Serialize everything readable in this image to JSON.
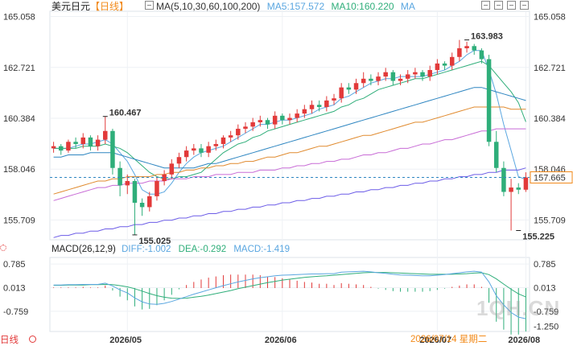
{
  "header": {
    "symbol": "美元日元",
    "period": "【日线】",
    "ma_label": "MA(5,10,30,60,100,200)",
    "ma5_text": "MA5:157.572",
    "ma10_text": "MA10:160.220",
    "ma_short": "MA"
  },
  "macd_header": {
    "label": "MACD(26,12,9)",
    "diff_text": "DIFF:-1.002",
    "dea_text": "DEA:-0.292",
    "macd_text": "MACD:-1.419"
  },
  "footer": {
    "period_label": "日线",
    "watermark": "1QH.CN"
  },
  "crosshair": {
    "date_text": "2026/07/14 星期二"
  },
  "colors": {
    "up": "#e23a3a",
    "down": "#2fae7a",
    "ma5": "#5aa6e0",
    "ma10": "#2fae7a",
    "ma30": "#2e86c1",
    "ma60": "#e08a2e",
    "ma100": "#c86bd6",
    "ma200": "#6c5ce7",
    "accent": "#e84545"
  },
  "chart_data": [
    {
      "type": "candlestick",
      "ylim": [
        154.8,
        165.3
      ],
      "y_ticks": [
        "165.058",
        "162.721",
        "160.384",
        "158.046",
        "155.709"
      ],
      "x_ticks": [
        "2026/05",
        "2026/06",
        "2026/07",
        "2026/08"
      ],
      "current_price": "157.665",
      "annotations": [
        {
          "text": "160.467",
          "value": 160.467,
          "index": 7
        },
        {
          "text": "155.025",
          "value": 155.025,
          "index": 11
        },
        {
          "text": "163.983",
          "value": 163.983,
          "index": 56
        },
        {
          "text": "155.225",
          "value": 155.225,
          "index": 63
        }
      ],
      "series": {
        "open": [
          159.0,
          159.1,
          158.9,
          159.3,
          159.2,
          159.5,
          159.1,
          159.4,
          159.8,
          158.1,
          157.3,
          157.5,
          156.5,
          156.3,
          156.8,
          157.5,
          157.8,
          158.3,
          158.6,
          158.9,
          159.0,
          158.8,
          159.1,
          159.2,
          159.5,
          159.6,
          159.9,
          160.0,
          160.2,
          160.3,
          160.1,
          160.5,
          160.3,
          160.4,
          160.6,
          160.8,
          161.0,
          160.9,
          161.2,
          161.3,
          161.8,
          161.7,
          162.0,
          162.2,
          162.1,
          162.3,
          162.5,
          162.1,
          162.2,
          162.4,
          162.5,
          162.3,
          162.6,
          162.9,
          162.8,
          163.2,
          163.6,
          163.7,
          163.5,
          163.1,
          159.3,
          158.1,
          157.0,
          157.2,
          157.1
        ],
        "close": [
          159.1,
          158.9,
          159.3,
          159.2,
          159.5,
          159.1,
          159.4,
          159.8,
          158.1,
          157.3,
          157.5,
          156.5,
          156.3,
          156.8,
          157.5,
          157.8,
          158.3,
          158.6,
          158.9,
          159.0,
          158.8,
          159.1,
          159.2,
          159.5,
          159.6,
          159.9,
          160.0,
          160.2,
          160.3,
          160.1,
          160.5,
          160.3,
          160.4,
          160.6,
          160.8,
          161.0,
          160.9,
          161.2,
          161.3,
          161.8,
          161.7,
          162.0,
          162.2,
          162.1,
          162.3,
          162.5,
          162.1,
          162.2,
          162.4,
          162.5,
          162.3,
          162.6,
          162.9,
          162.8,
          163.2,
          163.6,
          163.7,
          163.5,
          163.1,
          159.3,
          158.1,
          157.0,
          157.2,
          157.1,
          157.665
        ],
        "high": [
          159.3,
          159.2,
          159.4,
          159.5,
          159.7,
          159.6,
          159.6,
          160.467,
          159.9,
          158.4,
          157.8,
          157.6,
          156.7,
          157.0,
          157.7,
          158.0,
          158.5,
          158.8,
          159.1,
          159.2,
          159.2,
          159.3,
          159.4,
          159.6,
          159.8,
          160.1,
          160.2,
          160.4,
          160.5,
          160.4,
          160.7,
          160.6,
          160.6,
          160.8,
          161.0,
          161.2,
          161.2,
          161.4,
          161.5,
          162.0,
          162.0,
          162.2,
          162.5,
          162.4,
          162.5,
          162.7,
          162.6,
          162.4,
          162.6,
          162.7,
          162.6,
          162.8,
          163.1,
          163.0,
          163.4,
          163.983,
          163.9,
          163.8,
          163.6,
          163.3,
          159.8,
          158.4,
          157.6,
          157.4,
          157.9
        ],
        "low": [
          158.8,
          158.7,
          158.8,
          159.0,
          159.0,
          158.9,
          158.9,
          159.2,
          157.8,
          156.8,
          156.9,
          155.025,
          155.9,
          156.1,
          156.6,
          157.3,
          157.6,
          158.1,
          158.4,
          158.7,
          158.6,
          158.6,
          158.9,
          159.0,
          159.3,
          159.4,
          159.7,
          159.8,
          160.0,
          159.9,
          159.9,
          160.1,
          160.1,
          160.2,
          160.4,
          160.6,
          160.7,
          160.7,
          161.0,
          161.1,
          161.5,
          161.5,
          161.8,
          161.9,
          161.9,
          162.1,
          161.9,
          161.9,
          162.0,
          162.2,
          162.1,
          162.1,
          162.4,
          162.6,
          162.6,
          163.0,
          163.4,
          163.3,
          162.9,
          159.1,
          157.9,
          156.8,
          155.225,
          156.9,
          157.0
        ]
      },
      "moving_averages": [
        {
          "name": "MA5",
          "values": [
            159.0,
            159.0,
            159.0,
            159.1,
            159.2,
            159.2,
            159.3,
            159.4,
            159.2,
            158.8,
            158.4,
            157.8,
            157.1,
            156.9,
            156.9,
            157.0,
            157.4,
            157.9,
            158.3,
            158.6,
            158.8,
            158.9,
            159.0,
            159.1,
            159.3,
            159.5,
            159.7,
            159.9,
            160.1,
            160.1,
            160.2,
            160.3,
            160.3,
            160.4,
            160.5,
            160.6,
            160.8,
            160.9,
            161.0,
            161.3,
            161.4,
            161.6,
            161.8,
            162.0,
            162.1,
            162.2,
            162.2,
            162.3,
            162.3,
            162.3,
            162.3,
            162.4,
            162.5,
            162.6,
            162.8,
            163.0,
            163.3,
            163.5,
            163.5,
            162.6,
            161.5,
            160.1,
            158.9,
            157.7,
            157.572
          ]
        },
        {
          "name": "MA10",
          "values": [
            159.0,
            159.0,
            159.0,
            159.0,
            159.1,
            159.1,
            159.1,
            159.2,
            159.1,
            159.0,
            158.8,
            158.5,
            158.2,
            157.9,
            157.7,
            157.6,
            157.6,
            157.7,
            157.7,
            157.8,
            157.9,
            158.2,
            158.5,
            158.8,
            159.0,
            159.2,
            159.3,
            159.5,
            159.6,
            159.8,
            159.9,
            160.0,
            160.1,
            160.2,
            160.3,
            160.4,
            160.5,
            160.6,
            160.7,
            160.9,
            161.0,
            161.2,
            161.3,
            161.5,
            161.7,
            161.8,
            161.9,
            162.0,
            162.1,
            162.2,
            162.2,
            162.3,
            162.4,
            162.5,
            162.6,
            162.7,
            162.8,
            162.9,
            163.0,
            162.8,
            162.4,
            162.0,
            161.6,
            161.1,
            160.22
          ]
        },
        {
          "name": "MA30",
          "values": [
            158.6,
            158.6,
            158.7,
            158.7,
            158.7,
            158.8,
            158.8,
            158.8,
            158.8,
            158.7,
            158.6,
            158.5,
            158.4,
            158.3,
            158.2,
            158.1,
            158.1,
            158.1,
            158.1,
            158.1,
            158.2,
            158.3,
            158.3,
            158.4,
            158.5,
            158.6,
            158.7,
            158.8,
            158.9,
            159.0,
            159.1,
            159.2,
            159.3,
            159.4,
            159.5,
            159.6,
            159.7,
            159.8,
            159.9,
            160.0,
            160.1,
            160.2,
            160.3,
            160.4,
            160.5,
            160.6,
            160.7,
            160.8,
            160.9,
            161.0,
            161.1,
            161.2,
            161.3,
            161.4,
            161.5,
            161.6,
            161.7,
            161.8,
            161.8,
            161.7,
            161.6,
            161.5,
            161.4,
            161.3,
            161.2
          ]
        },
        {
          "name": "MA60",
          "values": [
            156.9,
            157.0,
            157.1,
            157.2,
            157.3,
            157.4,
            157.5,
            157.5,
            157.6,
            157.6,
            157.7,
            157.7,
            157.7,
            157.7,
            157.8,
            157.8,
            157.9,
            157.9,
            158.0,
            158.0,
            158.1,
            158.1,
            158.2,
            158.2,
            158.3,
            158.3,
            158.4,
            158.4,
            158.5,
            158.6,
            158.6,
            158.7,
            158.8,
            158.8,
            158.9,
            159.0,
            159.1,
            159.1,
            159.2,
            159.3,
            159.4,
            159.5,
            159.6,
            159.6,
            159.7,
            159.8,
            159.9,
            160.0,
            160.1,
            160.2,
            160.2,
            160.3,
            160.4,
            160.5,
            160.6,
            160.7,
            160.8,
            160.9,
            160.9,
            160.9,
            160.9,
            160.9,
            160.8,
            160.8,
            160.8
          ]
        },
        {
          "name": "MA100",
          "values": [
            156.6,
            156.7,
            156.8,
            156.9,
            157.0,
            157.1,
            157.2,
            157.2,
            157.3,
            157.3,
            157.4,
            157.4,
            157.4,
            157.5,
            157.5,
            157.5,
            157.6,
            157.6,
            157.6,
            157.7,
            157.7,
            157.7,
            157.8,
            157.8,
            157.8,
            157.9,
            157.9,
            157.9,
            158.0,
            158.0,
            158.0,
            158.1,
            158.1,
            158.2,
            158.2,
            158.3,
            158.3,
            158.4,
            158.4,
            158.5,
            158.5,
            158.6,
            158.7,
            158.7,
            158.8,
            158.8,
            158.9,
            159.0,
            159.0,
            159.1,
            159.2,
            159.2,
            159.3,
            159.4,
            159.4,
            159.5,
            159.6,
            159.7,
            159.8,
            159.8,
            159.9,
            159.9,
            159.9,
            159.9,
            159.9
          ]
        },
        {
          "name": "MA200",
          "values": [
            154.9,
            155.0,
            155.0,
            155.1,
            155.1,
            155.2,
            155.2,
            155.3,
            155.3,
            155.4,
            155.4,
            155.5,
            155.5,
            155.6,
            155.6,
            155.7,
            155.7,
            155.8,
            155.8,
            155.9,
            155.9,
            156.0,
            156.0,
            156.1,
            156.1,
            156.2,
            156.2,
            156.3,
            156.3,
            156.4,
            156.4,
            156.5,
            156.5,
            156.6,
            156.6,
            156.7,
            156.7,
            156.8,
            156.8,
            156.9,
            156.9,
            157.0,
            157.0,
            157.1,
            157.1,
            157.2,
            157.2,
            157.3,
            157.3,
            157.4,
            157.4,
            157.5,
            157.5,
            157.6,
            157.6,
            157.7,
            157.7,
            157.8,
            157.8,
            157.9,
            157.9,
            158.0,
            158.0,
            158.0,
            158.1
          ]
        }
      ]
    },
    {
      "type": "macd",
      "ylim": [
        -1.42,
        1.0
      ],
      "y_ticks": [
        "0.785",
        "0.013",
        "-0.759",
        "-1.250"
      ],
      "diff": [
        0.1,
        0.1,
        0.11,
        0.11,
        0.12,
        0.12,
        0.12,
        0.16,
        0.07,
        -0.06,
        -0.16,
        -0.32,
        -0.45,
        -0.52,
        -0.53,
        -0.5,
        -0.44,
        -0.36,
        -0.28,
        -0.2,
        -0.13,
        -0.06,
        0.01,
        0.08,
        0.14,
        0.2,
        0.25,
        0.3,
        0.34,
        0.37,
        0.4,
        0.42,
        0.43,
        0.44,
        0.45,
        0.46,
        0.46,
        0.47,
        0.47,
        0.52,
        0.53,
        0.54,
        0.55,
        0.53,
        0.5,
        0.48,
        0.45,
        0.43,
        0.42,
        0.41,
        0.4,
        0.4,
        0.42,
        0.44,
        0.47,
        0.5,
        0.53,
        0.55,
        0.52,
        0.2,
        -0.25,
        -0.55,
        -0.8,
        -0.95,
        -1.002
      ],
      "dea": [
        0.09,
        0.09,
        0.1,
        0.1,
        0.1,
        0.11,
        0.11,
        0.12,
        0.11,
        0.08,
        0.04,
        -0.02,
        -0.1,
        -0.18,
        -0.25,
        -0.3,
        -0.33,
        -0.34,
        -0.33,
        -0.3,
        -0.27,
        -0.23,
        -0.18,
        -0.13,
        -0.08,
        -0.02,
        0.03,
        0.08,
        0.13,
        0.18,
        0.22,
        0.26,
        0.29,
        0.32,
        0.35,
        0.37,
        0.39,
        0.4,
        0.42,
        0.44,
        0.46,
        0.48,
        0.5,
        0.51,
        0.51,
        0.51,
        0.5,
        0.49,
        0.48,
        0.47,
        0.46,
        0.45,
        0.45,
        0.45,
        0.45,
        0.46,
        0.47,
        0.49,
        0.5,
        0.44,
        0.3,
        0.13,
        -0.04,
        -0.19,
        -0.292
      ],
      "macd": [
        0.02,
        0.02,
        0.02,
        0.02,
        0.04,
        0.02,
        0.02,
        0.08,
        -0.08,
        -0.28,
        -0.4,
        -0.6,
        -0.7,
        -0.68,
        -0.56,
        -0.4,
        -0.22,
        -0.04,
        0.1,
        0.2,
        0.28,
        0.34,
        0.38,
        0.42,
        0.44,
        0.44,
        0.44,
        0.44,
        0.42,
        0.38,
        0.36,
        0.32,
        0.28,
        0.24,
        0.2,
        0.18,
        0.14,
        0.14,
        0.1,
        0.16,
        0.14,
        0.12,
        0.1,
        0.04,
        -0.02,
        -0.06,
        -0.1,
        -0.12,
        -0.12,
        -0.12,
        -0.12,
        -0.1,
        -0.06,
        -0.02,
        0.04,
        0.08,
        0.12,
        0.12,
        0.04,
        -0.48,
        -1.1,
        -1.36,
        -1.52,
        -1.52,
        -1.419
      ]
    }
  ]
}
